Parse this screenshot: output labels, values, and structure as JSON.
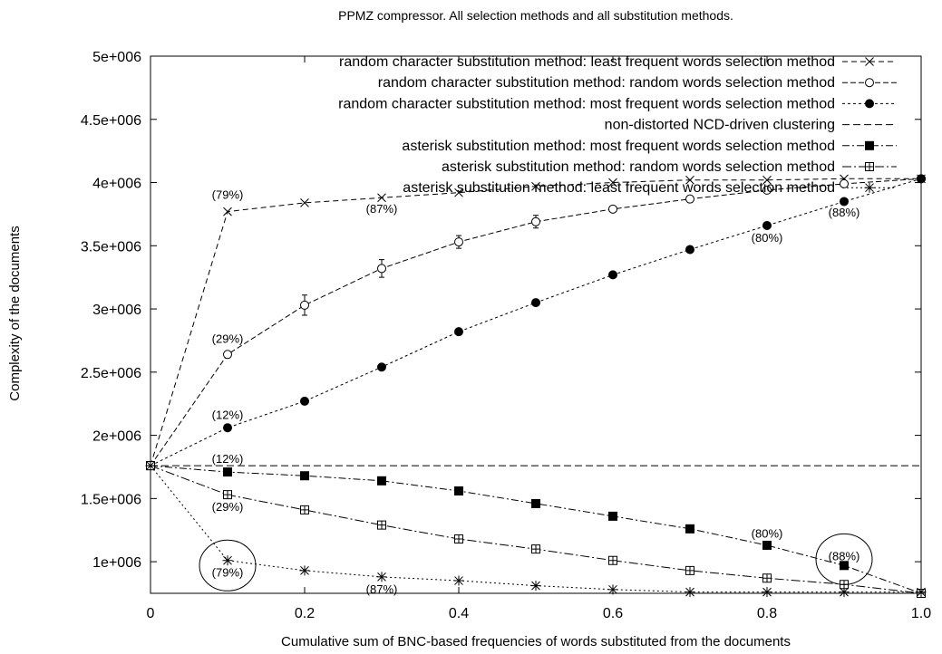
{
  "chart_data": {
    "type": "line",
    "title": "PPMZ compressor. All selection methods and all substitution methods.",
    "xlabel": "Cumulative sum of BNC-based frequencies of words substituted from the documents",
    "ylabel": "Complexity of the documents",
    "xlim": [
      0,
      1.0
    ],
    "ylim": [
      750000,
      5000000
    ],
    "xticks": [
      0,
      0.2,
      0.4,
      0.6,
      0.8,
      1.0
    ],
    "xtick_labels": [
      "0",
      "0.2",
      "0.4",
      "0.6",
      "0.8",
      "1.0"
    ],
    "yticks": [
      1000000,
      1500000,
      2000000,
      2500000,
      3000000,
      3500000,
      4000000,
      4500000,
      5000000
    ],
    "ytick_labels": [
      "1e+006",
      "1.5e+006",
      "2e+006",
      "2.5e+006",
      "3e+006",
      "3.5e+006",
      "4e+006",
      "4.5e+006",
      "5e+006"
    ],
    "grid": false,
    "legend_position": "top-right",
    "series": [
      {
        "name": "random character substitution method: least frequent words selection method",
        "marker": "x",
        "dash": "6,4",
        "x": [
          0,
          0.1,
          0.2,
          0.3,
          0.4,
          0.5,
          0.6,
          0.7,
          0.8,
          0.9,
          1.0
        ],
        "y": [
          1760000,
          3770000,
          3840000,
          3880000,
          3920000,
          3970000,
          4000000,
          4020000,
          4020000,
          4030000,
          4030000
        ]
      },
      {
        "name": "random character substitution method: random words selection method",
        "marker": "circle-open",
        "dash": "6,3",
        "x": [
          0,
          0.1,
          0.2,
          0.3,
          0.4,
          0.5,
          0.6,
          0.7,
          0.8,
          0.9,
          1.0
        ],
        "y": [
          1760000,
          2640000,
          3030000,
          3320000,
          3530000,
          3690000,
          3790000,
          3870000,
          3940000,
          3990000,
          4030000
        ],
        "err": [
          0,
          20000,
          80000,
          70000,
          50000,
          50000,
          20000,
          10000,
          10000,
          10000,
          0
        ]
      },
      {
        "name": "random character substitution method: most frequent words selection method",
        "marker": "circle-filled",
        "dash": "3,3",
        "x": [
          0,
          0.1,
          0.2,
          0.3,
          0.4,
          0.5,
          0.6,
          0.7,
          0.8,
          0.9,
          1.0
        ],
        "y": [
          1760000,
          2060000,
          2270000,
          2540000,
          2820000,
          3050000,
          3270000,
          3470000,
          3660000,
          3850000,
          4030000
        ]
      },
      {
        "name": "non-distorted NCD-driven clustering",
        "marker": "none",
        "dash": "8,4",
        "x": [
          0,
          1.0
        ],
        "y": [
          1760000,
          1760000
        ]
      },
      {
        "name": "asterisk substitution method: most frequent words selection method",
        "marker": "square-filled",
        "dash": "8,3,2,3",
        "x": [
          0,
          0.1,
          0.2,
          0.3,
          0.4,
          0.5,
          0.6,
          0.7,
          0.8,
          0.9,
          1.0
        ],
        "y": [
          1760000,
          1710000,
          1680000,
          1640000,
          1560000,
          1460000,
          1360000,
          1260000,
          1130000,
          970000,
          750000
        ]
      },
      {
        "name": "asterisk substitution method: random words selection method",
        "marker": "square-open",
        "dash": "10,3,2,3",
        "x": [
          0,
          0.1,
          0.2,
          0.3,
          0.4,
          0.5,
          0.6,
          0.7,
          0.8,
          0.9,
          1.0
        ],
        "y": [
          1760000,
          1530000,
          1410000,
          1290000,
          1180000,
          1100000,
          1010000,
          930000,
          870000,
          820000,
          750000
        ]
      },
      {
        "name": "asterisk substitution method: least frequent words selection method",
        "marker": "star",
        "dash": "2,3",
        "x": [
          0,
          0.1,
          0.2,
          0.3,
          0.4,
          0.5,
          0.6,
          0.7,
          0.8,
          0.9,
          1.0
        ],
        "y": [
          1760000,
          1010000,
          930000,
          880000,
          850000,
          810000,
          780000,
          760000,
          760000,
          760000,
          760000
        ]
      }
    ],
    "annotations": [
      {
        "text": "(79%)",
        "x": 0.1,
        "y": 3900000
      },
      {
        "text": "(87%)",
        "x": 0.3,
        "y": 3790000
      },
      {
        "text": "(88%)",
        "x": 0.9,
        "y": 3760000
      },
      {
        "text": "(80%)",
        "x": 0.8,
        "y": 3560000
      },
      {
        "text": "(29%)",
        "x": 0.1,
        "y": 2760000
      },
      {
        "text": "(12%)",
        "x": 0.1,
        "y": 2160000
      },
      {
        "text": "(12%)",
        "x": 0.1,
        "y": 1810000
      },
      {
        "text": "(29%)",
        "x": 0.1,
        "y": 1430000
      },
      {
        "text": "(80%)",
        "x": 0.8,
        "y": 1220000
      },
      {
        "text": "(88%)",
        "x": 0.9,
        "y": 1040000
      },
      {
        "text": "(79%)",
        "x": 0.1,
        "y": 910000
      },
      {
        "text": "(87%)",
        "x": 0.3,
        "y": 780000
      }
    ],
    "highlight_circles": [
      {
        "x": 0.1,
        "y": 970000
      },
      {
        "x": 0.9,
        "y": 1020000
      }
    ]
  }
}
